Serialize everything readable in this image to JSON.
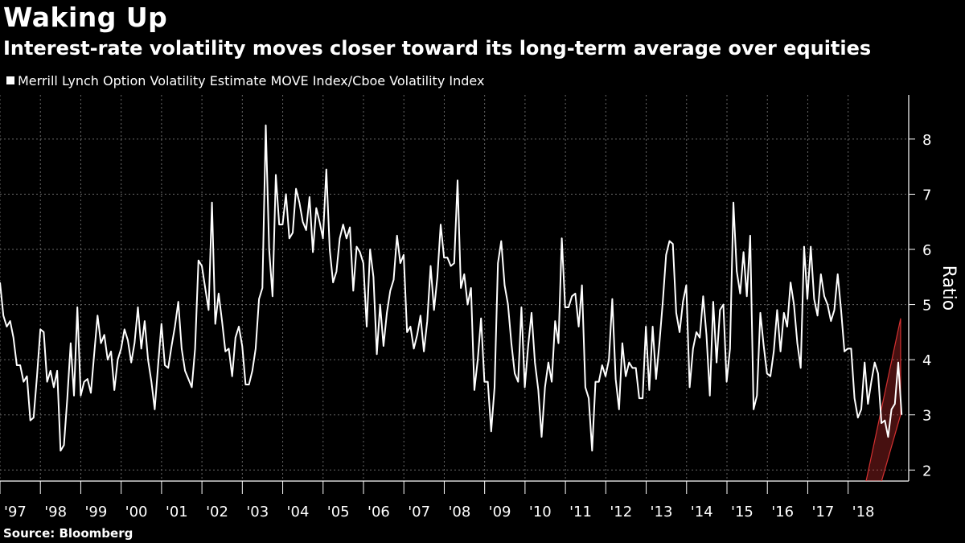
{
  "title": "Waking Up",
  "subtitle": "Interest-rate volatility moves closer toward its long-term average over equities",
  "source": "Source: Bloomberg",
  "colors": {
    "background": "#000000",
    "line": "#ffffff",
    "grid": "#666666",
    "highlight": "#ff3b3b"
  },
  "chart_data": {
    "type": "line",
    "title": "Waking Up",
    "xlabel": "",
    "ylabel": "Ratio",
    "xlim": [
      1997.0,
      2019.5
    ],
    "ylim": [
      1.8,
      8.8
    ],
    "grid": true,
    "legend_position": "top-left",
    "y_ticks": [
      2,
      3,
      4,
      5,
      6,
      7,
      8
    ],
    "y_tick_labels": [
      "2",
      "3",
      "4",
      "5",
      "6",
      "7",
      "8"
    ],
    "x_ticks": [
      1997,
      1998,
      1999,
      2000,
      2001,
      2002,
      2003,
      2004,
      2005,
      2006,
      2007,
      2008,
      2009,
      2010,
      2011,
      2012,
      2013,
      2014,
      2015,
      2016,
      2017,
      2018
    ],
    "x_tick_labels": [
      "'97",
      "'98",
      "'99",
      "'00",
      "'01",
      "'02",
      "'03",
      "'04",
      "'05",
      "'06",
      "'07",
      "'08",
      "'09",
      "'10",
      "'11",
      "'12",
      "'13",
      "'14",
      "'15",
      "'16",
      "'17",
      "'18"
    ],
    "series": [
      {
        "name": "Merrill Lynch Option Volatility Estimate MOVE Index/Cboe Volatility Index",
        "x_start": 1997.0,
        "x_step": 0.0833,
        "values": [
          5.4,
          4.8,
          4.6,
          4.7,
          4.4,
          3.9,
          3.9,
          3.6,
          3.7,
          2.9,
          2.95,
          3.7,
          4.55,
          4.5,
          3.6,
          3.8,
          3.5,
          3.8,
          2.35,
          2.45,
          3.3,
          4.3,
          3.35,
          4.95,
          3.35,
          3.6,
          3.65,
          3.4,
          4.1,
          4.8,
          4.3,
          4.45,
          4.0,
          4.15,
          3.45,
          4.0,
          4.2,
          4.55,
          4.35,
          3.95,
          4.3,
          4.95,
          4.2,
          4.7,
          4.0,
          3.6,
          3.1,
          3.9,
          4.65,
          3.9,
          3.85,
          4.25,
          4.6,
          5.05,
          4.2,
          3.8,
          3.65,
          3.5,
          4.2,
          5.8,
          5.7,
          5.3,
          4.9,
          6.85,
          4.65,
          5.2,
          4.7,
          4.15,
          4.2,
          3.7,
          4.4,
          4.6,
          4.25,
          3.55,
          3.55,
          3.8,
          4.2,
          5.1,
          5.3,
          8.25,
          6.0,
          5.15,
          7.35,
          6.45,
          6.45,
          7.0,
          6.2,
          6.3,
          7.1,
          6.85,
          6.5,
          6.35,
          6.95,
          5.95,
          6.75,
          6.5,
          6.2,
          7.45,
          6.0,
          5.4,
          5.6,
          6.2,
          6.45,
          6.2,
          6.4,
          5.25,
          6.05,
          5.95,
          5.75,
          4.6,
          6.0,
          5.5,
          4.1,
          5.0,
          4.25,
          4.85,
          5.25,
          5.45,
          6.25,
          5.75,
          5.9,
          4.5,
          4.6,
          4.2,
          4.45,
          4.8,
          4.15,
          4.7,
          5.7,
          4.9,
          5.5,
          6.45,
          5.85,
          5.85,
          5.7,
          5.75,
          7.25,
          5.3,
          5.55,
          5.0,
          5.3,
          3.45,
          4.0,
          4.75,
          3.6,
          3.6,
          2.7,
          3.5,
          5.75,
          6.15,
          5.35,
          5.0,
          4.3,
          3.75,
          3.6,
          4.95,
          3.5,
          4.25,
          4.85,
          3.95,
          3.45,
          2.6,
          3.5,
          3.95,
          3.6,
          4.7,
          4.3,
          6.2,
          4.95,
          4.95,
          5.15,
          5.2,
          4.6,
          5.35,
          3.5,
          3.3,
          2.35,
          3.6,
          3.6,
          3.9,
          3.7,
          4.0,
          5.1,
          3.65,
          3.1,
          4.3,
          3.7,
          3.95,
          3.85,
          3.85,
          3.3,
          3.3,
          4.6,
          3.45,
          4.6,
          3.65,
          4.3,
          5.05,
          5.9,
          6.15,
          6.1,
          4.85,
          4.5,
          5.05,
          5.35,
          3.5,
          4.2,
          4.5,
          4.4,
          5.15,
          4.45,
          3.35,
          5.05,
          3.95,
          4.9,
          5.0,
          3.6,
          4.2,
          6.85,
          5.6,
          5.2,
          5.95,
          5.15,
          6.25,
          3.1,
          3.35,
          4.85,
          4.25,
          3.75,
          3.7,
          4.15,
          4.9,
          4.15,
          4.85,
          4.6,
          5.4,
          5.0,
          4.3,
          3.85,
          6.05,
          5.1,
          6.05,
          5.1,
          4.8,
          5.55,
          5.15,
          5.0,
          4.7,
          4.9,
          5.55,
          4.9,
          4.15,
          4.2,
          4.2,
          3.3,
          2.95,
          3.1,
          3.95,
          3.2,
          3.6,
          3.95,
          3.75,
          2.85,
          2.9,
          2.6,
          3.1,
          3.2,
          3.95,
          3.0
        ]
      }
    ],
    "annotations": [
      {
        "type": "highlight_channel",
        "x_range": [
          2018.3,
          2019.3
        ],
        "upper_y": [
          1.3,
          4.75
        ],
        "lower_y": [
          0.45,
          3.0
        ]
      }
    ]
  }
}
